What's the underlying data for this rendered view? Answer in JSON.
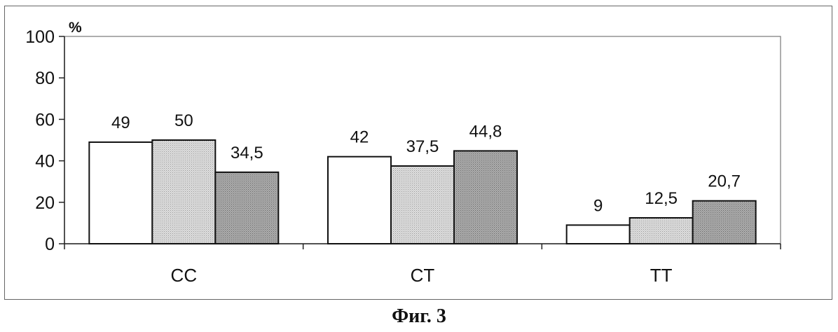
{
  "chart_data": {
    "type": "bar",
    "categories": [
      "CC",
      "CT",
      "TT"
    ],
    "series": [
      {
        "values": [
          49,
          42,
          9
        ],
        "labels": [
          "49",
          "42",
          "9"
        ],
        "color": "#ffffff"
      },
      {
        "values": [
          50,
          37.5,
          12.5
        ],
        "labels": [
          "50",
          "37,5",
          "12,5"
        ],
        "color": "#d4d4d4"
      },
      {
        "values": [
          34.5,
          44.8,
          20.7
        ],
        "labels": [
          "34,5",
          "44,8",
          "20,7"
        ],
        "color": "#a9a9a9"
      }
    ],
    "ylim": [
      0,
      100
    ],
    "yticks": [
      "0",
      "20",
      "40",
      "60",
      "80",
      "100"
    ],
    "y_unit": "%",
    "grid": false,
    "legend": "none"
  },
  "caption": "Фиг. 3"
}
